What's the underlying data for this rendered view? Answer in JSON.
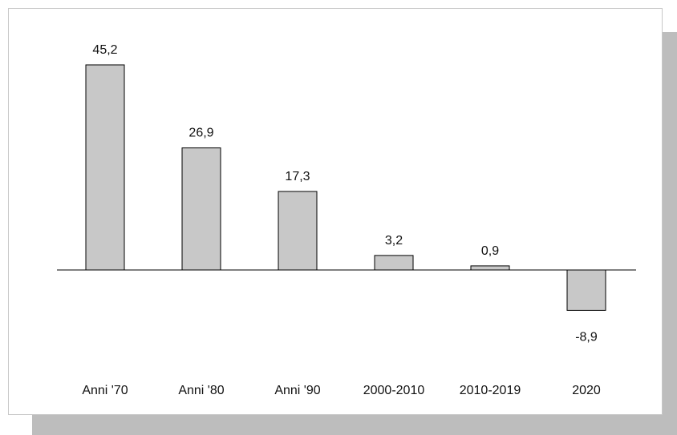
{
  "chart_data": {
    "type": "bar",
    "categories": [
      "Anni '70",
      "Anni '80",
      "Anni '90",
      "2000-2010",
      "2010-2019",
      "2020"
    ],
    "values": [
      45.2,
      26.9,
      17.3,
      3.2,
      0.9,
      -8.9
    ],
    "value_labels": [
      "45,2",
      "26,9",
      "17,3",
      "3,2",
      "0,9",
      "-8,9"
    ],
    "title": "",
    "xlabel": "",
    "ylabel": "",
    "ylim": [
      -8.9,
      45.2
    ],
    "grid": false,
    "legend": "none",
    "colors": {
      "bar_fill": "#c8c8c8",
      "bar_stroke": "#000000",
      "shadow": "#bdbdbd"
    }
  }
}
